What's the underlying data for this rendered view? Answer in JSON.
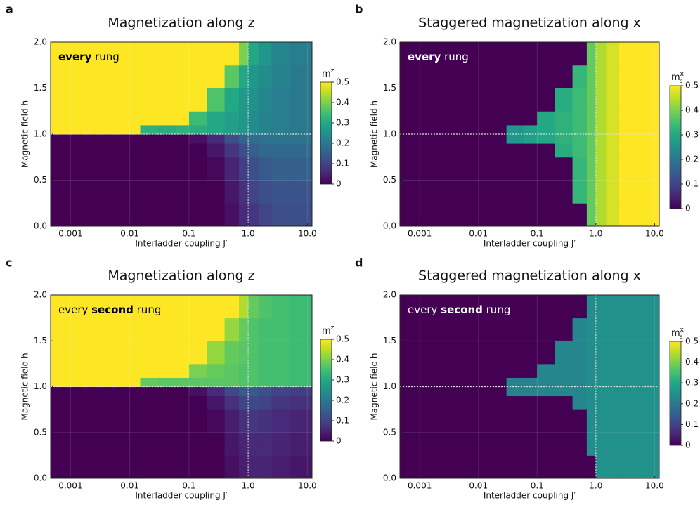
{
  "chart_data": [
    {
      "type": "heatmap",
      "panel_label": "a",
      "title": "Magnetization along z",
      "annotation": [
        {
          "text": "every",
          "bold": true
        },
        {
          "text": " rung"
        }
      ],
      "annotation_color": "#000000",
      "xlabel": "Interladder coupling J′",
      "ylabel": "Magnetic field h",
      "xscale": "log",
      "xlim": [
        0.00046,
        12
      ],
      "ylim": [
        0,
        2
      ],
      "xticks": [
        0.001,
        0.01,
        0.1,
        {
          "value": 1,
          "label": "1.0"
        },
        {
          "value": 10,
          "label": "10.0"
        }
      ],
      "yticks": [
        {
          "value": 0,
          "label": "0.0"
        },
        0.5,
        {
          "value": 1,
          "label": "1.0"
        },
        1.5,
        {
          "value": 2,
          "label": "2.0"
        }
      ],
      "grid": true,
      "hlines": [
        1
      ],
      "vlines": [
        1
      ],
      "xbins": [
        0.00046,
        0.003,
        0.015,
        0.03,
        0.06,
        0.1,
        0.2,
        0.4,
        0.7,
        1.0,
        1.5,
        2.5,
        5,
        12
      ],
      "ybins": [
        0,
        0.25,
        0.5,
        0.75,
        0.9,
        1.0,
        1.1,
        1.25,
        1.5,
        1.75,
        2.0
      ],
      "z": [
        [
          0,
          0,
          0,
          0,
          0,
          0,
          0,
          0.02,
          0.06,
          0.08,
          0.1,
          0.12,
          0.12
        ],
        [
          0,
          0,
          0,
          0,
          0,
          0,
          0,
          0.03,
          0.07,
          0.1,
          0.12,
          0.13,
          0.13
        ],
        [
          0,
          0,
          0,
          0,
          0,
          0,
          0.01,
          0.05,
          0.09,
          0.12,
          0.14,
          0.15,
          0.15
        ],
        [
          0,
          0,
          0,
          0,
          0,
          0,
          0.03,
          0.08,
          0.12,
          0.15,
          0.17,
          0.17,
          0.17
        ],
        [
          0,
          0,
          0,
          0,
          0,
          0.02,
          0.06,
          0.12,
          0.16,
          0.18,
          0.19,
          0.19,
          0.19
        ],
        [
          0.5,
          0.5,
          0.32,
          0.31,
          0.32,
          0.31,
          0.3,
          0.28,
          0.26,
          0.24,
          0.22,
          0.21,
          0.2
        ],
        [
          0.5,
          0.5,
          0.5,
          0.5,
          0.5,
          0.34,
          0.3,
          0.28,
          0.26,
          0.24,
          0.22,
          0.21,
          0.2
        ],
        [
          0.5,
          0.5,
          0.5,
          0.5,
          0.5,
          0.5,
          0.36,
          0.3,
          0.27,
          0.25,
          0.23,
          0.21,
          0.2
        ],
        [
          0.5,
          0.5,
          0.5,
          0.5,
          0.5,
          0.5,
          0.5,
          0.37,
          0.3,
          0.26,
          0.24,
          0.22,
          0.2
        ],
        [
          0.5,
          0.5,
          0.5,
          0.5,
          0.5,
          0.5,
          0.5,
          0.5,
          0.4,
          0.3,
          0.26,
          0.23,
          0.21
        ]
      ],
      "clim": [
        0,
        0.5
      ],
      "cbar_ticks": [
        0,
        0.1,
        0.2,
        0.3,
        0.4,
        0.5
      ],
      "cbar_label": {
        "base": "m",
        "sup": "z"
      }
    },
    {
      "type": "heatmap",
      "panel_label": "b",
      "title": "Staggered magnetization along x",
      "annotation": [
        {
          "text": "every",
          "bold": true
        },
        {
          "text": " rung"
        }
      ],
      "annotation_color": "#ffffff",
      "xlabel": "Interladder coupling J′",
      "ylabel": "Magnetic field h",
      "xscale": "log",
      "xlim": [
        0.00046,
        12
      ],
      "ylim": [
        0,
        2
      ],
      "xticks": [
        0.001,
        0.01,
        0.1,
        {
          "value": 1,
          "label": "1.0"
        },
        {
          "value": 10,
          "label": "10.0"
        }
      ],
      "yticks": [
        {
          "value": 0,
          "label": "0.0"
        },
        0.5,
        {
          "value": 1,
          "label": "1.0"
        },
        1.5,
        {
          "value": 2,
          "label": "2.0"
        }
      ],
      "grid": true,
      "hlines": [
        1
      ],
      "vlines": [
        1
      ],
      "xbins": [
        0.00046,
        0.003,
        0.015,
        0.03,
        0.06,
        0.1,
        0.2,
        0.4,
        0.7,
        1.0,
        1.5,
        2.5,
        5,
        12
      ],
      "ybins": [
        0,
        0.25,
        0.5,
        0.75,
        0.9,
        1.0,
        1.1,
        1.25,
        1.5,
        1.75,
        2.0
      ],
      "z": [
        [
          0,
          0,
          0,
          0,
          0,
          0,
          0,
          0,
          0.38,
          0.44,
          0.47,
          0.5,
          0.5
        ],
        [
          0,
          0,
          0,
          0,
          0,
          0,
          0,
          0.33,
          0.38,
          0.44,
          0.47,
          0.5,
          0.5
        ],
        [
          0,
          0,
          0,
          0,
          0,
          0,
          0,
          0.33,
          0.38,
          0.44,
          0.47,
          0.5,
          0.5
        ],
        [
          0,
          0,
          0,
          0,
          0,
          0,
          0.31,
          0.34,
          0.38,
          0.44,
          0.47,
          0.5,
          0.5
        ],
        [
          0,
          0,
          0,
          0.26,
          0.28,
          0.3,
          0.32,
          0.34,
          0.38,
          0.44,
          0.47,
          0.5,
          0.5
        ],
        [
          0,
          0,
          0,
          0.26,
          0.28,
          0.3,
          0.32,
          0.34,
          0.38,
          0.44,
          0.47,
          0.5,
          0.5
        ],
        [
          0,
          0,
          0,
          0,
          0,
          0.3,
          0.32,
          0.34,
          0.38,
          0.44,
          0.47,
          0.5,
          0.5
        ],
        [
          0,
          0,
          0,
          0,
          0,
          0,
          0.31,
          0.34,
          0.38,
          0.44,
          0.47,
          0.5,
          0.5
        ],
        [
          0,
          0,
          0,
          0,
          0,
          0,
          0,
          0.33,
          0.38,
          0.44,
          0.47,
          0.5,
          0.5
        ],
        [
          0,
          0,
          0,
          0,
          0,
          0,
          0,
          0,
          0.38,
          0.44,
          0.47,
          0.5,
          0.5
        ]
      ],
      "clim": [
        0,
        0.5
      ],
      "cbar_ticks": [
        0,
        0.1,
        0.2,
        0.3,
        0.4,
        0.5
      ],
      "cbar_label": {
        "base": "m",
        "sup": "x",
        "sub": "s"
      }
    },
    {
      "type": "heatmap",
      "panel_label": "c",
      "title": "Magnetization along z",
      "annotation": [
        {
          "text": "every "
        },
        {
          "text": "second",
          "bold": true
        },
        {
          "text": " rung"
        }
      ],
      "annotation_color": "#000000",
      "xlabel": "Interladder coupling J′",
      "ylabel": "Magnetic field h",
      "xscale": "log",
      "xlim": [
        0.00046,
        12
      ],
      "ylim": [
        0,
        2
      ],
      "xticks": [
        0.001,
        0.01,
        0.1,
        {
          "value": 1,
          "label": "1.0"
        },
        {
          "value": 10,
          "label": "10.0"
        }
      ],
      "yticks": [
        {
          "value": 0,
          "label": "0.0"
        },
        0.5,
        {
          "value": 1,
          "label": "1.0"
        },
        1.5,
        {
          "value": 2,
          "label": "2.0"
        }
      ],
      "grid": true,
      "hlines": [
        1
      ],
      "vlines": [
        1
      ],
      "xbins": [
        0.00046,
        0.003,
        0.015,
        0.03,
        0.06,
        0.1,
        0.2,
        0.4,
        0.7,
        1.0,
        1.5,
        2.5,
        5,
        12
      ],
      "ybins": [
        0,
        0.25,
        0.5,
        0.75,
        0.9,
        1.0,
        1.1,
        1.25,
        1.5,
        1.75,
        2.0
      ],
      "z": [
        [
          0,
          0,
          0,
          0,
          0,
          0,
          0,
          0.02,
          0.04,
          0.05,
          0.05,
          0.04,
          0.03
        ],
        [
          0,
          0,
          0,
          0,
          0,
          0,
          0,
          0.03,
          0.05,
          0.06,
          0.06,
          0.05,
          0.04
        ],
        [
          0,
          0,
          0,
          0,
          0,
          0,
          0.01,
          0.04,
          0.07,
          0.08,
          0.07,
          0.06,
          0.05
        ],
        [
          0,
          0,
          0,
          0,
          0,
          0,
          0.03,
          0.07,
          0.1,
          0.11,
          0.1,
          0.08,
          0.07
        ],
        [
          0,
          0,
          0,
          0,
          0,
          0.02,
          0.06,
          0.11,
          0.14,
          0.14,
          0.12,
          0.1,
          0.09
        ],
        [
          0.5,
          0.5,
          0.38,
          0.37,
          0.37,
          0.37,
          0.37,
          0.37,
          0.36,
          0.36,
          0.35,
          0.35,
          0.34
        ],
        [
          0.5,
          0.5,
          0.5,
          0.5,
          0.5,
          0.4,
          0.38,
          0.37,
          0.36,
          0.36,
          0.35,
          0.35,
          0.34
        ],
        [
          0.5,
          0.5,
          0.5,
          0.5,
          0.5,
          0.5,
          0.42,
          0.38,
          0.37,
          0.36,
          0.35,
          0.35,
          0.34
        ],
        [
          0.5,
          0.5,
          0.5,
          0.5,
          0.5,
          0.5,
          0.5,
          0.42,
          0.38,
          0.36,
          0.35,
          0.35,
          0.34
        ],
        [
          0.5,
          0.5,
          0.5,
          0.5,
          0.5,
          0.5,
          0.5,
          0.5,
          0.44,
          0.38,
          0.36,
          0.35,
          0.34
        ]
      ],
      "clim": [
        0,
        0.5
      ],
      "cbar_ticks": [
        0,
        0.1,
        0.2,
        0.3,
        0.4,
        0.5
      ],
      "cbar_label": {
        "base": "m",
        "sup": "z"
      }
    },
    {
      "type": "heatmap",
      "panel_label": "d",
      "title": "Staggered magnetization along x",
      "annotation": [
        {
          "text": "every "
        },
        {
          "text": "second",
          "bold": true
        },
        {
          "text": " rung"
        }
      ],
      "annotation_color": "#ffffff",
      "xlabel": "Interladder coupling J′",
      "ylabel": "Magnetic field h",
      "xscale": "log",
      "xlim": [
        0.00046,
        12
      ],
      "ylim": [
        0,
        2
      ],
      "xticks": [
        0.001,
        0.01,
        0.1,
        {
          "value": 1,
          "label": "1.0"
        },
        {
          "value": 10,
          "label": "10.0"
        }
      ],
      "yticks": [
        {
          "value": 0,
          "label": "0.0"
        },
        0.5,
        {
          "value": 1,
          "label": "1.0"
        },
        1.5,
        {
          "value": 2,
          "label": "2.0"
        }
      ],
      "grid": true,
      "hlines": [
        1
      ],
      "vlines": [
        1
      ],
      "xbins": [
        0.00046,
        0.003,
        0.015,
        0.03,
        0.06,
        0.1,
        0.2,
        0.4,
        0.7,
        1.0,
        1.5,
        2.5,
        5,
        12
      ],
      "ybins": [
        0,
        0.25,
        0.5,
        0.75,
        0.9,
        1.0,
        1.1,
        1.25,
        1.5,
        1.75,
        2.0
      ],
      "z": [
        [
          0,
          0,
          0,
          0,
          0,
          0,
          0,
          0,
          0,
          0.25,
          0.25,
          0.25,
          0.25
        ],
        [
          0,
          0,
          0,
          0,
          0,
          0,
          0,
          0,
          0.24,
          0.25,
          0.25,
          0.25,
          0.25
        ],
        [
          0,
          0,
          0,
          0,
          0,
          0,
          0,
          0,
          0.24,
          0.25,
          0.25,
          0.25,
          0.25
        ],
        [
          0,
          0,
          0,
          0,
          0,
          0,
          0,
          0.23,
          0.24,
          0.25,
          0.25,
          0.25,
          0.25
        ],
        [
          0,
          0,
          0,
          0.22,
          0.22,
          0.23,
          0.23,
          0.23,
          0.24,
          0.25,
          0.25,
          0.25,
          0.25
        ],
        [
          0,
          0,
          0,
          0.22,
          0.22,
          0.23,
          0.23,
          0.23,
          0.24,
          0.25,
          0.25,
          0.25,
          0.25
        ],
        [
          0,
          0,
          0,
          0,
          0,
          0.23,
          0.23,
          0.23,
          0.24,
          0.25,
          0.25,
          0.25,
          0.25
        ],
        [
          0,
          0,
          0,
          0,
          0,
          0,
          0.23,
          0.23,
          0.24,
          0.25,
          0.25,
          0.25,
          0.25
        ],
        [
          0,
          0,
          0,
          0,
          0,
          0,
          0,
          0.23,
          0.24,
          0.25,
          0.25,
          0.25,
          0.25
        ],
        [
          0,
          0,
          0,
          0,
          0,
          0,
          0,
          0,
          0.24,
          0.25,
          0.25,
          0.25,
          0.25
        ]
      ],
      "clim": [
        0,
        0.5
      ],
      "cbar_ticks": [
        0,
        0.1,
        0.2,
        0.3,
        0.4,
        0.5
      ],
      "cbar_label": {
        "base": "m",
        "sup": "x",
        "sub": "s"
      }
    }
  ]
}
